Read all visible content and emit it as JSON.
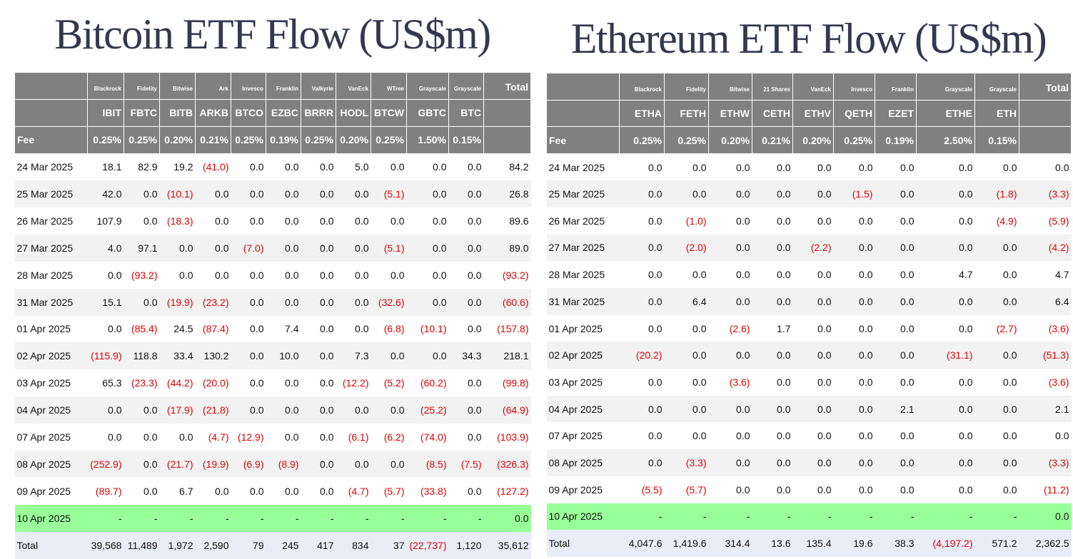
{
  "tables": [
    {
      "title": "Bitcoin ETF Flow (US$m)",
      "providers": [
        "Blackrock",
        "Fidelity",
        "Bitwise",
        "Ark",
        "Invesco",
        "Franklin",
        "Valkyrie",
        "VanEck",
        "WTree",
        "Grayscale",
        "Grayscale"
      ],
      "total_label": "Total",
      "tickers": [
        "IBIT",
        "FBTC",
        "BITB",
        "ARKB",
        "BTCO",
        "EZBC",
        "BRRR",
        "HODL",
        "BTCW",
        "GBTC",
        "BTC"
      ],
      "fee_label": "Fee",
      "fees": [
        "0.25%",
        "0.25%",
        "0.20%",
        "0.21%",
        "0.25%",
        "0.19%",
        "0.25%",
        "0.20%",
        "0.25%",
        "1.50%",
        "0.15%"
      ],
      "rows": [
        [
          "24 Mar 2025",
          "18.1",
          "82.9",
          "19.2",
          "(41.0)",
          "0.0",
          "0.0",
          "0.0",
          "5.0",
          "0.0",
          "0.0",
          "0.0",
          "84.2"
        ],
        [
          "25 Mar 2025",
          "42.0",
          "0.0",
          "(10.1)",
          "0.0",
          "0.0",
          "0.0",
          "0.0",
          "0.0",
          "(5.1)",
          "0.0",
          "0.0",
          "26.8"
        ],
        [
          "26 Mar 2025",
          "107.9",
          "0.0",
          "(18.3)",
          "0.0",
          "0.0",
          "0.0",
          "0.0",
          "0.0",
          "0.0",
          "0.0",
          "0.0",
          "89.6"
        ],
        [
          "27 Mar 2025",
          "4.0",
          "97.1",
          "0.0",
          "0.0",
          "(7.0)",
          "0.0",
          "0.0",
          "0.0",
          "(5.1)",
          "0.0",
          "0.0",
          "89.0"
        ],
        [
          "28 Mar 2025",
          "0.0",
          "(93.2)",
          "0.0",
          "0.0",
          "0.0",
          "0.0",
          "0.0",
          "0.0",
          "0.0",
          "0.0",
          "0.0",
          "(93.2)"
        ],
        [
          "31 Mar 2025",
          "15.1",
          "0.0",
          "(19.9)",
          "(23.2)",
          "0.0",
          "0.0",
          "0.0",
          "0.0",
          "(32.6)",
          "0.0",
          "0.0",
          "(60.6)"
        ],
        [
          "01 Apr 2025",
          "0.0",
          "(85.4)",
          "24.5",
          "(87.4)",
          "0.0",
          "7.4",
          "0.0",
          "0.0",
          "(6.8)",
          "(10.1)",
          "0.0",
          "(157.8)"
        ],
        [
          "02 Apr 2025",
          "(115.9)",
          "118.8",
          "33.4",
          "130.2",
          "0.0",
          "10.0",
          "0.0",
          "7.3",
          "0.0",
          "0.0",
          "34.3",
          "218.1"
        ],
        [
          "03 Apr 2025",
          "65.3",
          "(23.3)",
          "(44.2)",
          "(20.0)",
          "0.0",
          "0.0",
          "0.0",
          "(12.2)",
          "(5.2)",
          "(60.2)",
          "0.0",
          "(99.8)"
        ],
        [
          "04 Apr 2025",
          "0.0",
          "0.0",
          "(17.9)",
          "(21.8)",
          "0.0",
          "0.0",
          "0.0",
          "0.0",
          "0.0",
          "(25.2)",
          "0.0",
          "(64.9)"
        ],
        [
          "07 Apr 2025",
          "0.0",
          "0.0",
          "0.0",
          "(4.7)",
          "(12.9)",
          "0.0",
          "0.0",
          "(6.1)",
          "(6.2)",
          "(74.0)",
          "0.0",
          "(103.9)"
        ],
        [
          "08 Apr 2025",
          "(252.9)",
          "0.0",
          "(21.7)",
          "(19.9)",
          "(6.9)",
          "(8.9)",
          "0.0",
          "0.0",
          "0.0",
          "(8.5)",
          "(7.5)",
          "(326.3)"
        ],
        [
          "09 Apr 2025",
          "(89.7)",
          "0.0",
          "6.7",
          "0.0",
          "0.0",
          "0.0",
          "0.0",
          "(4.7)",
          "(5.7)",
          "(33.8)",
          "0.0",
          "(127.2)"
        ],
        [
          "10 Apr 2025",
          "-",
          "-",
          "-",
          "-",
          "-",
          "-",
          "-",
          "-",
          "-",
          "-",
          "-",
          "0.0"
        ],
        [
          "Total",
          "39,568",
          "11,489",
          "1,972",
          "2,590",
          "79",
          "245",
          "417",
          "834",
          "37",
          "(22,737)",
          "1,120",
          "35,612"
        ]
      ]
    },
    {
      "title": "Ethereum ETF Flow (US$m)",
      "providers": [
        "Blackrock",
        "Fidelity",
        "Bitwise",
        "21 Shares",
        "VanEck",
        "Invesco",
        "Franklin",
        "Grayscale",
        "Grayscale"
      ],
      "total_label": "Total",
      "tickers": [
        "ETHA",
        "FETH",
        "ETHW",
        "CETH",
        "ETHV",
        "QETH",
        "EZET",
        "ETHE",
        "ETH"
      ],
      "fee_label": "Fee",
      "fees": [
        "0.25%",
        "0.25%",
        "0.20%",
        "0.21%",
        "0.20%",
        "0.25%",
        "0.19%",
        "2.50%",
        "0.15%"
      ],
      "rows": [
        [
          "24 Mar 2025",
          "0.0",
          "0.0",
          "0.0",
          "0.0",
          "0.0",
          "0.0",
          "0.0",
          "0.0",
          "0.0",
          "0.0"
        ],
        [
          "25 Mar 2025",
          "0.0",
          "0.0",
          "0.0",
          "0.0",
          "0.0",
          "(1.5)",
          "0.0",
          "0.0",
          "(1.8)",
          "(3.3)"
        ],
        [
          "26 Mar 2025",
          "0.0",
          "(1.0)",
          "0.0",
          "0.0",
          "0.0",
          "0.0",
          "0.0",
          "0.0",
          "(4.9)",
          "(5.9)"
        ],
        [
          "27 Mar 2025",
          "0.0",
          "(2.0)",
          "0.0",
          "0.0",
          "(2.2)",
          "0.0",
          "0.0",
          "0.0",
          "0.0",
          "(4.2)"
        ],
        [
          "28 Mar 2025",
          "0.0",
          "0.0",
          "0.0",
          "0.0",
          "0.0",
          "0.0",
          "0.0",
          "4.7",
          "0.0",
          "4.7"
        ],
        [
          "31 Mar 2025",
          "0.0",
          "6.4",
          "0.0",
          "0.0",
          "0.0",
          "0.0",
          "0.0",
          "0.0",
          "0.0",
          "6.4"
        ],
        [
          "01 Apr 2025",
          "0.0",
          "0.0",
          "(2.6)",
          "1.7",
          "0.0",
          "0.0",
          "0.0",
          "0.0",
          "(2.7)",
          "(3.6)"
        ],
        [
          "02 Apr 2025",
          "(20.2)",
          "0.0",
          "0.0",
          "0.0",
          "0.0",
          "0.0",
          "0.0",
          "(31.1)",
          "0.0",
          "(51.3)"
        ],
        [
          "03 Apr 2025",
          "0.0",
          "0.0",
          "(3.6)",
          "0.0",
          "0.0",
          "0.0",
          "0.0",
          "0.0",
          "0.0",
          "(3.6)"
        ],
        [
          "04 Apr 2025",
          "0.0",
          "0.0",
          "0.0",
          "0.0",
          "0.0",
          "0.0",
          "2.1",
          "0.0",
          "0.0",
          "2.1"
        ],
        [
          "07 Apr 2025",
          "0.0",
          "0.0",
          "0.0",
          "0.0",
          "0.0",
          "0.0",
          "0.0",
          "0.0",
          "0.0",
          "0.0"
        ],
        [
          "08 Apr 2025",
          "0.0",
          "(3.3)",
          "0.0",
          "0.0",
          "0.0",
          "0.0",
          "0.0",
          "0.0",
          "0.0",
          "(3.3)"
        ],
        [
          "09 Apr 2025",
          "(5.5)",
          "(5.7)",
          "0.0",
          "0.0",
          "0.0",
          "0.0",
          "0.0",
          "0.0",
          "0.0",
          "(11.2)"
        ],
        [
          "10 Apr 2025",
          "-",
          "-",
          "-",
          "-",
          "-",
          "-",
          "-",
          "-",
          "-",
          "0.0"
        ],
        [
          "Total",
          "4,047.6",
          "1,419.6",
          "314.4",
          "13.6",
          "135.4",
          "19.6",
          "38.3",
          "(4,197.2)",
          "571.2",
          "2,362.5"
        ]
      ]
    }
  ]
}
